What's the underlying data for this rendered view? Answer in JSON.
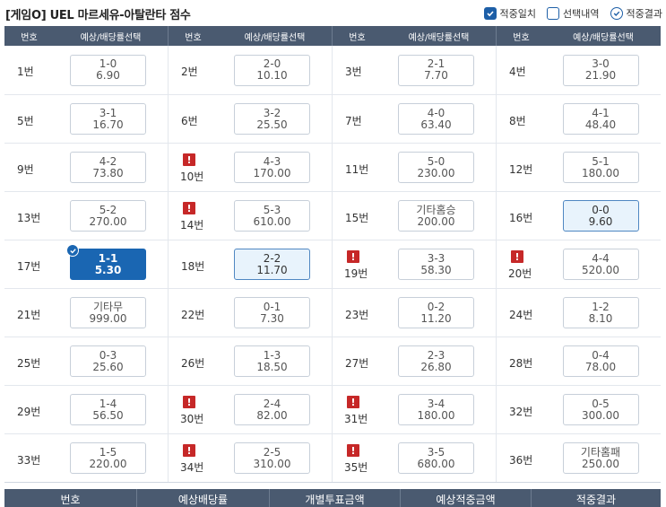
{
  "title": "[게임O] UEL 마르세유-아탈란타 점수",
  "legend": [
    {
      "label": "적중일치",
      "style": "filled"
    },
    {
      "label": "선택내역",
      "style": "empty"
    },
    {
      "label": "적중결과",
      "style": "circle"
    }
  ],
  "headers": {
    "no": "번호",
    "sel": "예상/배당률선택"
  },
  "rows": [
    [
      {
        "no": "1번",
        "score": "1-0",
        "odds": "6.90"
      },
      {
        "no": "2번",
        "score": "2-0",
        "odds": "10.10"
      },
      {
        "no": "3번",
        "score": "2-1",
        "odds": "7.70"
      },
      {
        "no": "4번",
        "score": "3-0",
        "odds": "21.90"
      }
    ],
    [
      {
        "no": "5번",
        "score": "3-1",
        "odds": "16.70"
      },
      {
        "no": "6번",
        "score": "3-2",
        "odds": "25.50"
      },
      {
        "no": "7번",
        "score": "4-0",
        "odds": "63.40"
      },
      {
        "no": "8번",
        "score": "4-1",
        "odds": "48.40"
      }
    ],
    [
      {
        "no": "9번",
        "score": "4-2",
        "odds": "73.80"
      },
      {
        "no": "10번",
        "score": "4-3",
        "odds": "170.00",
        "warn": true
      },
      {
        "no": "11번",
        "score": "5-0",
        "odds": "230.00"
      },
      {
        "no": "12번",
        "score": "5-1",
        "odds": "180.00"
      }
    ],
    [
      {
        "no": "13번",
        "score": "5-2",
        "odds": "270.00"
      },
      {
        "no": "14번",
        "score": "5-3",
        "odds": "610.00",
        "warn": true
      },
      {
        "no": "15번",
        "score": "기타홈승",
        "odds": "200.00"
      },
      {
        "no": "16번",
        "score": "0-0",
        "odds": "9.60",
        "state": "picked"
      }
    ],
    [
      {
        "no": "17번",
        "score": "1-1",
        "odds": "5.30",
        "state": "selected",
        "check": true
      },
      {
        "no": "18번",
        "score": "2-2",
        "odds": "11.70",
        "state": "picked"
      },
      {
        "no": "19번",
        "score": "3-3",
        "odds": "58.30",
        "warn": true
      },
      {
        "no": "20번",
        "score": "4-4",
        "odds": "520.00",
        "warn": true
      }
    ],
    [
      {
        "no": "21번",
        "score": "기타무",
        "odds": "999.00"
      },
      {
        "no": "22번",
        "score": "0-1",
        "odds": "7.30"
      },
      {
        "no": "23번",
        "score": "0-2",
        "odds": "11.20"
      },
      {
        "no": "24번",
        "score": "1-2",
        "odds": "8.10"
      }
    ],
    [
      {
        "no": "25번",
        "score": "0-3",
        "odds": "25.60"
      },
      {
        "no": "26번",
        "score": "1-3",
        "odds": "18.50"
      },
      {
        "no": "27번",
        "score": "2-3",
        "odds": "26.80"
      },
      {
        "no": "28번",
        "score": "0-4",
        "odds": "78.00"
      }
    ],
    [
      {
        "no": "29번",
        "score": "1-4",
        "odds": "56.50"
      },
      {
        "no": "30번",
        "score": "2-4",
        "odds": "82.00",
        "warn": true
      },
      {
        "no": "31번",
        "score": "3-4",
        "odds": "180.00",
        "warn": true
      },
      {
        "no": "32번",
        "score": "0-5",
        "odds": "300.00"
      }
    ],
    [
      {
        "no": "33번",
        "score": "1-5",
        "odds": "220.00"
      },
      {
        "no": "34번",
        "score": "2-5",
        "odds": "310.00",
        "warn": true
      },
      {
        "no": "35번",
        "score": "3-5",
        "odds": "680.00",
        "warn": true
      },
      {
        "no": "36번",
        "score": "기타홈패",
        "odds": "250.00"
      }
    ]
  ],
  "warn_mark": "!",
  "footer": [
    "번호",
    "예상배당률",
    "개별투표금액",
    "예상적중금액",
    "적중결과"
  ],
  "colors": {
    "accent": "#1a66b2",
    "header": "#4a5a70",
    "warn": "#c62828",
    "picked": "#e8f3fc"
  }
}
